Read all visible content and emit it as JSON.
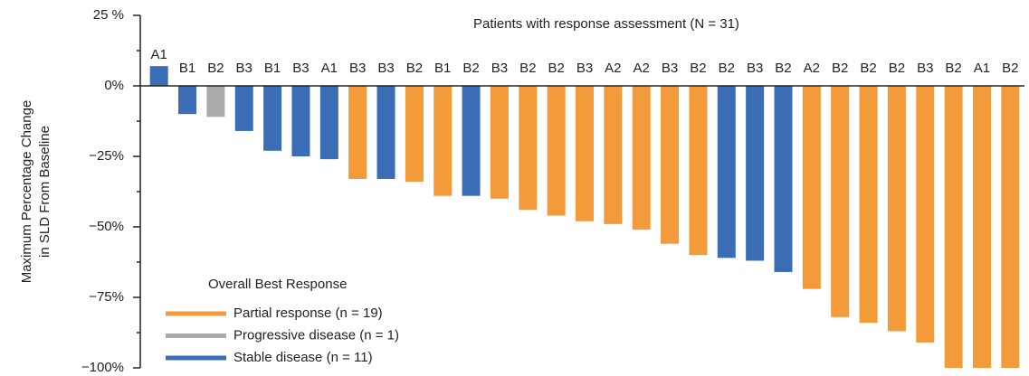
{
  "chart_data": {
    "type": "bar",
    "title": "Patients with response assessment (N = 31)",
    "ylabel": [
      "Maximum Percentage Change",
      "in SLD From Baseline"
    ],
    "categories": [
      "A1",
      "B1",
      "B2",
      "B3",
      "B1",
      "B3",
      "A1",
      "B3",
      "B3",
      "B2",
      "B1",
      "B2",
      "B3",
      "B2",
      "B2",
      "B3",
      "A2",
      "A2",
      "B3",
      "B2",
      "B2",
      "B3",
      "B2",
      "A2",
      "B2",
      "B2",
      "B2",
      "B3",
      "B2",
      "A1",
      "B2"
    ],
    "values": [
      7,
      -10,
      -11,
      -16,
      -23,
      -25,
      -26,
      -33,
      -33,
      -34,
      -39,
      -39,
      -40,
      -44,
      -46,
      -48,
      -49,
      -51,
      -56,
      -60,
      -61,
      -62,
      -66,
      -72,
      -82,
      -84,
      -87,
      -91,
      -100,
      -100,
      -100
    ],
    "colors": [
      "#3a6db5",
      "#3a6db5",
      "#aaaaaa",
      "#3a6db5",
      "#3a6db5",
      "#3a6db5",
      "#3a6db5",
      "#f39a3b",
      "#3a6db5",
      "#f39a3b",
      "#f39a3b",
      "#3a6db5",
      "#f39a3b",
      "#f39a3b",
      "#f39a3b",
      "#f39a3b",
      "#f39a3b",
      "#f39a3b",
      "#f39a3b",
      "#f39a3b",
      "#3a6db5",
      "#3a6db5",
      "#3a6db5",
      "#f39a3b",
      "#f39a3b",
      "#f39a3b",
      "#f39a3b",
      "#f39a3b",
      "#f39a3b",
      "#f39a3b",
      "#f39a3b"
    ],
    "ylim": [
      -100,
      25
    ],
    "yticks": [
      {
        "value": 25,
        "label": "25 %"
      },
      {
        "value": 0,
        "label": "0%"
      },
      {
        "value": -25,
        "label": "−25%"
      },
      {
        "value": -50,
        "label": "−50%"
      },
      {
        "value": -75,
        "label": "−75%"
      },
      {
        "value": -100,
        "label": "−100%"
      }
    ],
    "minor_yticks": [
      12.5,
      -12.5,
      -37.5,
      -62.5,
      -87.5
    ],
    "legend": {
      "title": "Overall Best Response",
      "entries": [
        {
          "name": "Partial response (n = 19)",
          "color": "#f39a3b"
        },
        {
          "name": "Progressive disease (n = 1)",
          "color": "#aaaaaa"
        },
        {
          "name": "Stable disease (n = 11)",
          "color": "#3a6db5"
        }
      ]
    }
  }
}
